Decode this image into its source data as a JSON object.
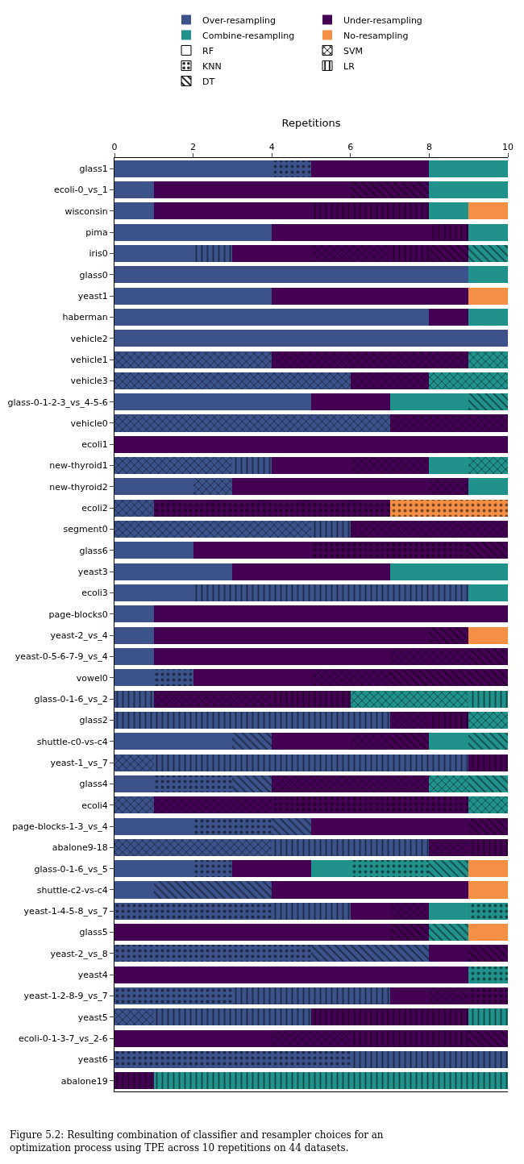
{
  "chart_data": {
    "type": "bar",
    "orientation": "horizontal",
    "stacked": true,
    "xlabel": "Repetitions",
    "categories": [
      "glass1",
      "ecoli-0_vs_1",
      "wisconsin",
      "pima",
      "iris0",
      "glass0",
      "yeast1",
      "haberman",
      "vehicle2",
      "vehicle1",
      "vehicle3",
      "glass-0-1-2-3_vs_4-5-6",
      "vehicle0",
      "ecoli1",
      "new-thyroid1",
      "new-thyroid2",
      "ecoli2",
      "segment0",
      "glass6",
      "yeast3",
      "ecoli3",
      "page-blocks0",
      "yeast-2_vs_4",
      "yeast-0-5-6-7-9_vs_4",
      "vowel0",
      "glass-0-1-6_vs_2",
      "glass2",
      "shuttle-c0-vs-c4",
      "yeast-1_vs_7",
      "glass4",
      "ecoli4",
      "page-blocks-1-3_vs_4",
      "abalone9-18",
      "glass-0-1-6_vs_5",
      "shuttle-c2-vs-c4",
      "yeast-1-4-5-8_vs_7",
      "glass5",
      "yeast-2_vs_8",
      "yeast4",
      "yeast-1-2-8-9_vs_7",
      "yeast5",
      "ecoli-0-1-3-7_vs_2-6",
      "yeast6",
      "abalone19"
    ],
    "series": [
      {
        "name": "Over-resampling",
        "color": "#3b528b",
        "values": [
          4,
          1,
          1,
          4,
          2,
          9,
          4,
          8,
          10,
          null,
          null,
          5,
          null,
          null,
          null,
          2,
          null,
          null,
          2,
          3,
          2,
          1,
          1,
          1,
          1,
          null,
          null,
          3,
          null,
          1,
          null,
          2,
          null,
          2,
          1,
          null,
          null,
          null,
          null,
          null,
          null,
          null,
          null,
          null
        ]
      },
      {
        "color": "#3b528b",
        "values": [
          null,
          null,
          null,
          null,
          null,
          null,
          null,
          null,
          null,
          4,
          6,
          null,
          7,
          null,
          3,
          1,
          1,
          5,
          null,
          null,
          null,
          null,
          null,
          null,
          null,
          null,
          null,
          null,
          1,
          null,
          1,
          null,
          4,
          null,
          null,
          null,
          null,
          null,
          null,
          null,
          1,
          null,
          null,
          null
        ]
      },
      {
        "color": "#3b528b",
        "values": [
          1,
          null,
          null,
          null,
          null,
          null,
          null,
          null,
          null,
          null,
          null,
          null,
          null,
          null,
          null,
          null,
          null,
          null,
          null,
          null,
          null,
          null,
          null,
          null,
          1,
          null,
          null,
          null,
          null,
          2,
          null,
          2,
          null,
          1,
          null,
          4,
          null,
          5,
          null,
          3,
          null,
          null,
          6,
          null
        ]
      },
      {
        "color": "#3b528b",
        "values": [
          null,
          null,
          null,
          null,
          1,
          null,
          null,
          null,
          null,
          null,
          null,
          null,
          null,
          null,
          1,
          null,
          null,
          1,
          null,
          null,
          7,
          null,
          null,
          null,
          null,
          1,
          7,
          null,
          8,
          null,
          null,
          null,
          4,
          null,
          null,
          2,
          null,
          null,
          null,
          4,
          4,
          null,
          4,
          null
        ]
      },
      {
        "color": "#3b528b",
        "values": [
          null,
          null,
          null,
          null,
          null,
          null,
          null,
          null,
          null,
          null,
          null,
          null,
          null,
          null,
          null,
          null,
          null,
          null,
          null,
          null,
          null,
          null,
          null,
          null,
          null,
          null,
          null,
          1,
          null,
          1,
          null,
          1,
          null,
          null,
          3,
          null,
          null,
          3,
          null,
          null,
          null,
          null,
          null,
          null
        ]
      },
      {
        "name": "Under-resampling",
        "color": "#440154",
        "values": [
          3,
          5,
          4,
          4,
          2,
          null,
          5,
          1,
          null,
          null,
          null,
          2,
          null,
          10,
          2,
          5,
          null,
          null,
          3,
          4,
          null,
          9,
          7,
          6,
          3,
          null,
          null,
          2,
          null,
          null,
          null,
          4,
          null,
          2,
          5,
          1,
          7,
          1,
          9,
          1,
          null,
          4,
          null,
          null
        ]
      },
      {
        "color": "#440154",
        "values": [
          null,
          null,
          null,
          null,
          2,
          null,
          null,
          null,
          null,
          5,
          2,
          null,
          3,
          null,
          2,
          1,
          null,
          4,
          null,
          null,
          null,
          null,
          null,
          2,
          2,
          3,
          1,
          1,
          null,
          4,
          3,
          null,
          1,
          null,
          null,
          1,
          null,
          null,
          null,
          1,
          null,
          2,
          null,
          null
        ]
      },
      {
        "color": "#440154",
        "values": [
          null,
          null,
          null,
          null,
          null,
          null,
          null,
          null,
          null,
          null,
          null,
          null,
          null,
          null,
          null,
          null,
          6,
          null,
          4,
          null,
          null,
          null,
          null,
          null,
          null,
          null,
          null,
          null,
          null,
          null,
          5,
          null,
          null,
          null,
          null,
          null,
          null,
          null,
          null,
          1,
          null,
          null,
          null,
          null
        ]
      },
      {
        "color": "#440154",
        "values": [
          null,
          null,
          3,
          1,
          1,
          null,
          null,
          null,
          null,
          null,
          null,
          null,
          null,
          null,
          null,
          null,
          null,
          null,
          null,
          null,
          null,
          null,
          null,
          null,
          null,
          2,
          1,
          null,
          1,
          null,
          null,
          null,
          1,
          null,
          null,
          null,
          null,
          null,
          null,
          null,
          4,
          3,
          null,
          1
        ]
      },
      {
        "color": "#440154",
        "values": [
          null,
          2,
          null,
          null,
          1,
          null,
          null,
          null,
          null,
          null,
          null,
          null,
          null,
          null,
          null,
          null,
          null,
          null,
          1,
          null,
          null,
          null,
          1,
          1,
          3,
          null,
          null,
          1,
          null,
          null,
          null,
          1,
          null,
          null,
          null,
          null,
          1,
          1,
          null,
          null,
          null,
          1,
          null,
          null
        ]
      },
      {
        "name": "Combine-resampling",
        "color": "#21918c",
        "values": [
          2,
          2,
          1,
          1,
          null,
          1,
          null,
          1,
          null,
          null,
          null,
          2,
          null,
          null,
          1,
          1,
          null,
          null,
          null,
          3,
          1,
          null,
          null,
          null,
          null,
          null,
          null,
          1,
          null,
          null,
          null,
          null,
          null,
          1,
          null,
          1,
          null,
          null,
          null,
          null,
          null,
          null,
          null,
          null
        ]
      },
      {
        "color": "#21918c",
        "values": [
          null,
          null,
          null,
          null,
          null,
          null,
          null,
          null,
          null,
          1,
          2,
          null,
          null,
          null,
          1,
          null,
          null,
          null,
          null,
          null,
          null,
          null,
          null,
          null,
          null,
          3,
          1,
          null,
          null,
          1,
          1,
          null,
          null,
          null,
          null,
          null,
          null,
          null,
          null,
          null,
          null,
          null,
          null,
          null
        ]
      },
      {
        "color": "#21918c",
        "values": [
          null,
          null,
          null,
          null,
          null,
          null,
          null,
          null,
          null,
          null,
          null,
          null,
          null,
          null,
          null,
          null,
          null,
          null,
          null,
          null,
          null,
          null,
          null,
          null,
          null,
          null,
          null,
          null,
          null,
          null,
          null,
          null,
          null,
          2,
          null,
          1,
          null,
          null,
          1,
          null,
          null,
          null,
          null,
          null
        ]
      },
      {
        "color": "#21918c",
        "values": [
          null,
          null,
          null,
          null,
          null,
          null,
          null,
          null,
          null,
          null,
          null,
          null,
          null,
          null,
          null,
          null,
          null,
          null,
          null,
          null,
          null,
          null,
          null,
          null,
          null,
          1,
          null,
          null,
          null,
          null,
          null,
          null,
          null,
          null,
          null,
          null,
          null,
          null,
          null,
          null,
          1,
          null,
          null,
          9
        ]
      },
      {
        "color": "#21918c",
        "values": [
          null,
          null,
          null,
          null,
          1,
          null,
          null,
          null,
          null,
          null,
          null,
          1,
          null,
          null,
          null,
          null,
          null,
          null,
          null,
          null,
          null,
          null,
          null,
          null,
          null,
          null,
          null,
          1,
          null,
          1,
          null,
          null,
          null,
          1,
          null,
          null,
          1,
          null,
          null,
          null,
          null,
          null,
          null,
          null
        ]
      },
      {
        "name": "No-resampling",
        "color": "#f68f46",
        "values": [
          null,
          null,
          1,
          null,
          null,
          null,
          1,
          null,
          null,
          null,
          null,
          null,
          null,
          null,
          null,
          null,
          null,
          null,
          null,
          null,
          null,
          null,
          1,
          null,
          null,
          null,
          null,
          null,
          null,
          null,
          null,
          null,
          null,
          1,
          1,
          null,
          1,
          null,
          null,
          null,
          null,
          null,
          null,
          null
        ]
      },
      {
        "color": "#f68f46",
        "values": [
          null,
          null,
          null,
          null,
          null,
          null,
          null,
          null,
          null,
          null,
          null,
          null,
          null,
          null,
          null,
          null,
          null,
          null,
          null,
          null,
          null,
          null,
          null,
          null,
          null,
          null,
          null,
          null,
          null,
          null,
          null,
          null,
          null,
          null,
          null,
          null,
          null,
          null,
          null,
          null,
          null,
          null,
          null,
          null
        ]
      },
      {
        "color": "#f68f46",
        "values": [
          null,
          null,
          null,
          null,
          null,
          null,
          null,
          null,
          null,
          null,
          null,
          null,
          null,
          null,
          null,
          null,
          3,
          null,
          null,
          null,
          null,
          null,
          null,
          null,
          null,
          null,
          null,
          null,
          null,
          null,
          null,
          null,
          null,
          null,
          null,
          null,
          null,
          null,
          null,
          null,
          null,
          null,
          null,
          null
        ]
      },
      {
        "color": "#f68f46",
        "values": [
          null,
          null,
          null,
          null,
          null,
          null,
          null,
          null,
          null,
          null,
          null,
          null,
          null,
          null,
          null,
          null,
          null,
          null,
          null,
          null,
          null,
          null,
          null,
          null,
          null,
          null,
          null,
          null,
          null,
          null,
          null,
          null,
          null,
          null,
          null,
          null,
          null,
          null,
          null,
          null,
          null,
          null,
          null,
          null
        ]
      },
      {
        "color": "#f68f46",
        "values": [
          null,
          null,
          null,
          null,
          null,
          null,
          null,
          null,
          null,
          null,
          null,
          null,
          null,
          null,
          null,
          null,
          null,
          null,
          null,
          null,
          null,
          null,
          null,
          null,
          null,
          null,
          null,
          null,
          null,
          null,
          null,
          null,
          null,
          null,
          null,
          null,
          null,
          null,
          null,
          null,
          null,
          null,
          null,
          null
        ]
      },
      {
        "name": "RF",
        "color": "#ffffff",
        "values": [
          null,
          null,
          null,
          null,
          null,
          null,
          null,
          null,
          null,
          null,
          null,
          null,
          null,
          null,
          null,
          null,
          null,
          null,
          null,
          null,
          null,
          null,
          null,
          null,
          null,
          null,
          null,
          null,
          null,
          null,
          null,
          null,
          null,
          null,
          null,
          null,
          null,
          null,
          null,
          null,
          null,
          null,
          null,
          null
        ]
      },
      {
        "name": "SVM",
        "color": "#000000",
        "values": [
          null,
          null,
          null,
          null,
          null,
          null,
          null,
          null,
          null,
          null,
          null,
          null,
          null,
          null,
          null,
          null,
          null,
          null,
          null,
          null,
          null,
          null,
          null,
          null,
          null,
          null,
          null,
          null,
          null,
          null,
          null,
          null,
          null,
          null,
          null,
          null,
          null,
          null,
          null,
          null,
          null,
          null,
          null,
          null
        ]
      },
      {
        "name": "KNN",
        "color": "#000000",
        "values": [
          null,
          null,
          null,
          null,
          null,
          null,
          null,
          null,
          null,
          null,
          null,
          null,
          null,
          null,
          null,
          null,
          null,
          null,
          null,
          null,
          null,
          null,
          null,
          null,
          null,
          null,
          null,
          null,
          null,
          null,
          null,
          null,
          null,
          null,
          null,
          null,
          null,
          null,
          null,
          null,
          null,
          null,
          null,
          null
        ]
      },
      {
        "name": "LR",
        "color": "#000000",
        "values": [
          null,
          null,
          null,
          null,
          null,
          null,
          null,
          null,
          null,
          null,
          null,
          null,
          null,
          null,
          null,
          null,
          null,
          null,
          null,
          null,
          null,
          null,
          null,
          null,
          null,
          null,
          null,
          null,
          null,
          null,
          null,
          null,
          null,
          null,
          null,
          null,
          null,
          null,
          null,
          null,
          null,
          null,
          null,
          null
        ]
      },
      {
        "name": "DT",
        "color": "#000000",
        "values": [
          null,
          null,
          null,
          null,
          null,
          null,
          null,
          null,
          null,
          null,
          null,
          null,
          null,
          null,
          null,
          null,
          null,
          null,
          null,
          null,
          null,
          null,
          null,
          null,
          null,
          null,
          null,
          null,
          null,
          null,
          null,
          null,
          null,
          null,
          null,
          null,
          null,
          null,
          null,
          null,
          null,
          null,
          null,
          null
        ]
      }
    ],
    "xlim": [
      0,
      10
    ],
    "xticks": [
      0,
      2,
      4,
      6,
      8,
      10
    ],
    "legend": "top",
    "annotations": [
      "Figure 5.2: Resulting combination of classifier and resampler choices for an optimization process using TPE across 10 repetitions on 44 datasets."
    ]
  }
}
